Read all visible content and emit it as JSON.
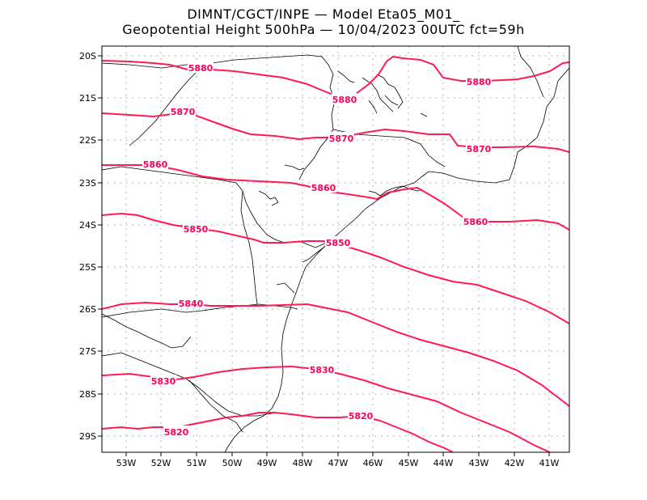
{
  "title": {
    "line1": "DIMNT/CGCT/INPE  —   Model Eta05_M01_",
    "line2": "Geopotential Height 500hPa  —   10/04/2023 00UTC fct=59h"
  },
  "colors": {
    "contour": "#ff1a55",
    "coast": "#000000",
    "grid": "#9a9a9a"
  },
  "axes": {
    "lat_labels": [
      "20S",
      "21S",
      "22S",
      "23S",
      "24S",
      "25S",
      "26S",
      "27S",
      "28S",
      "29S"
    ],
    "lon_labels": [
      "53W",
      "52W",
      "51W",
      "50W",
      "49W",
      "48W",
      "47W",
      "46W",
      "45W",
      "44W",
      "43W",
      "42W",
      "41W"
    ]
  },
  "contours": [
    {
      "value": "5880",
      "label": "5880",
      "label2": "5880",
      "label3": "5880"
    },
    {
      "value": "5870",
      "label": "5870",
      "label2": "5870",
      "label3": "5870"
    },
    {
      "value": "5860",
      "label": "5860",
      "label2": "5860",
      "label3": "5860"
    },
    {
      "value": "5850",
      "label": "5850",
      "label2": "5850"
    },
    {
      "value": "5840",
      "label": "5840"
    },
    {
      "value": "5830",
      "label": "5830",
      "label2": "5830"
    },
    {
      "value": "5820",
      "label": "5820",
      "label2": "5820"
    }
  ]
}
